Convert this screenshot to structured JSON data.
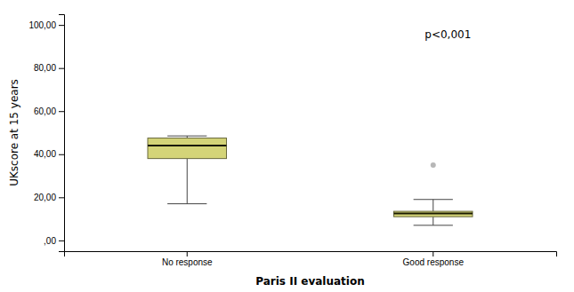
{
  "chart_data": {
    "type": "box",
    "xlabel": "Paris II evaluation",
    "ylabel": "UKscore at 15 years",
    "annotation": "p<0,001",
    "categories": [
      "No response",
      "Good response"
    ],
    "boxes": [
      {
        "q1": 38.0,
        "median": 44.0,
        "q3": 47.5,
        "whisker_low": 17.0,
        "whisker_high": 48.5,
        "fliers": []
      },
      {
        "q1": 11.0,
        "median": 12.5,
        "q3": 13.5,
        "whisker_low": 7.0,
        "whisker_high": 19.0,
        "fliers": [
          35.0
        ]
      }
    ],
    "color": "#d4d478",
    "ylim": [
      -5,
      105
    ],
    "yticks": [
      {
        "value": 0,
        "label": ",00"
      },
      {
        "value": 20,
        "label": "20,00"
      },
      {
        "value": 40,
        "label": "40,00"
      },
      {
        "value": 60,
        "label": "60,00"
      },
      {
        "value": 80,
        "label": "80,00"
      },
      {
        "value": 100,
        "label": "100,00"
      }
    ],
    "grid": false
  }
}
